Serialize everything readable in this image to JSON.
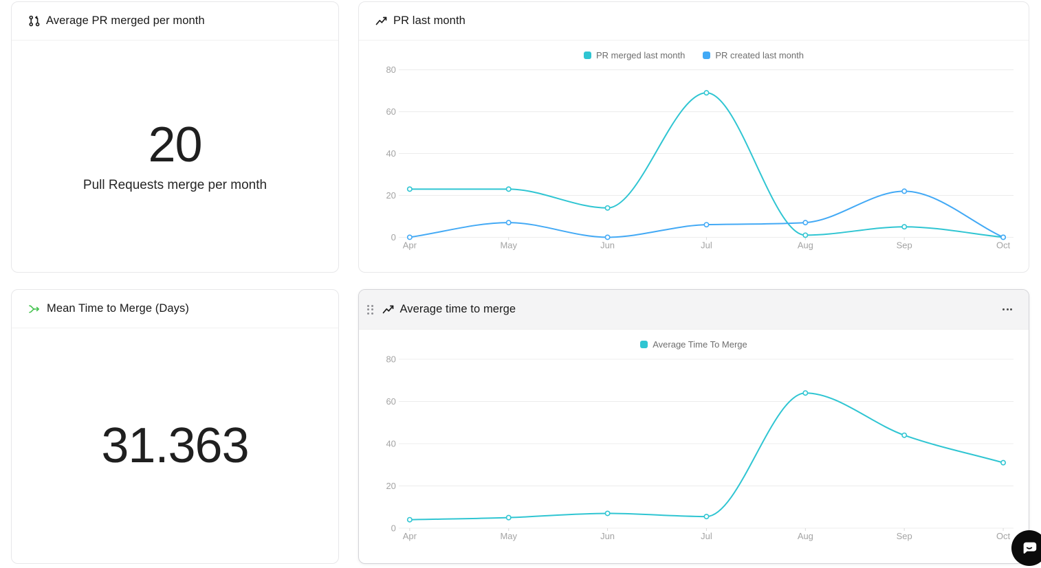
{
  "accent_colors": {
    "teal": "#2fc5d2",
    "blue": "#42a9f5",
    "green": "#44c24e",
    "grid": "#ececec"
  },
  "cards": {
    "avg_pr_merged": {
      "title": "Average PR merged per month",
      "value": "20",
      "label": "Pull Requests merge per month"
    },
    "pr_last_month": {
      "title": "PR last month"
    },
    "mean_time_to_merge": {
      "title": "Mean Time to Merge (Days)",
      "value": "31.363"
    },
    "average_time_to_merge": {
      "title": "Average time to merge"
    }
  },
  "chart_data": [
    {
      "type": "line",
      "title": "PR last month",
      "categories": [
        "Apr",
        "May",
        "Jun",
        "Jul",
        "Aug",
        "Sep",
        "Oct"
      ],
      "series": [
        {
          "name": "PR merged last month",
          "color": "#2fc5d2",
          "values": [
            23,
            23,
            14,
            69,
            1,
            5,
            0
          ]
        },
        {
          "name": "PR created last month",
          "color": "#42a9f5",
          "values": [
            0,
            7,
            0,
            6,
            7,
            22,
            0
          ]
        }
      ],
      "xlabel": "",
      "ylabel": "",
      "ylim": [
        0,
        88
      ],
      "yticks": [
        0,
        20,
        40,
        60,
        80
      ],
      "grid": true,
      "legend_position": "top"
    },
    {
      "type": "line",
      "title": "Average time to merge",
      "categories": [
        "Apr",
        "May",
        "Jun",
        "Jul",
        "Aug",
        "Sep",
        "Oct"
      ],
      "series": [
        {
          "name": "Average Time To Merge",
          "color": "#2fc5d2",
          "values": [
            4,
            5,
            7,
            5.5,
            64,
            44,
            31
          ]
        }
      ],
      "xlabel": "",
      "ylabel": "",
      "ylim": [
        0,
        88
      ],
      "yticks": [
        0,
        20,
        40,
        60,
        80
      ],
      "grid": true,
      "legend_position": "top"
    }
  ]
}
